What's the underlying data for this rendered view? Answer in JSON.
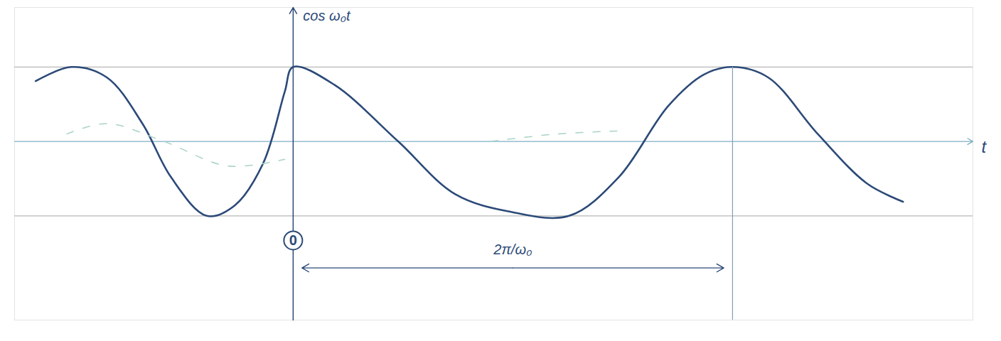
{
  "chart_data": {
    "type": "line",
    "y_label": "cos ω₀t",
    "x_label": "t",
    "series": [
      {
        "color": "#2c4a78",
        "line_style": "solid",
        "x": [
          -0.586,
          -0.505,
          -0.424,
          -0.343,
          -0.278,
          -0.197,
          -0.133,
          -0.068,
          -0.019,
          0,
          0.094,
          0.239,
          0.369,
          0.498,
          0.628,
          0.741,
          0.854,
          0.935,
          1.0,
          1.081,
          1.194,
          1.307,
          1.388
        ],
        "values": [
          0.81,
          1.0,
          0.86,
          0.24,
          -0.48,
          -1.0,
          -0.86,
          -0.29,
          0.67,
          1.0,
          0.76,
          0,
          -0.71,
          -0.95,
          -1.0,
          -0.48,
          0.48,
          0.9,
          1.0,
          0.86,
          0.1,
          -0.57,
          -0.81
        ]
      },
      {
        "color": "#a9d3c8",
        "line_style": "dashed",
        "x": [
          -0.515,
          -0.424,
          -0.294,
          -0.149,
          -0.019,
          0.2,
          0.45,
          0.6,
          0.741
        ],
        "values": [
          0.1,
          0.24,
          0,
          -0.33,
          -0.24,
          null,
          0,
          0.1,
          0.14
        ]
      }
    ],
    "xlim": [
      -0.634,
      1.547
    ],
    "ylim": [
      -2.4,
      1.8
    ],
    "xticks": [
      0
    ],
    "yticks": [
      -1,
      1
    ],
    "grid": true,
    "tick_labels": "x",
    "annotations": [
      {
        "text": "2π/ω₀",
        "x_start": 0,
        "x_end": 1,
        "y": -1.7
      }
    ]
  }
}
